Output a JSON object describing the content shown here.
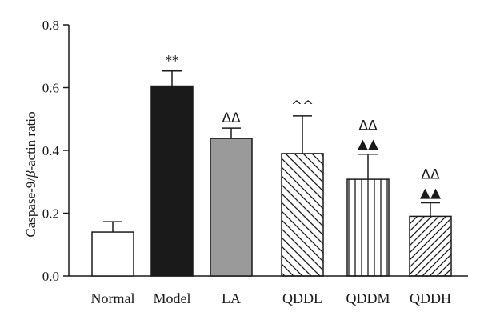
{
  "chart_data": {
    "type": "bar",
    "categories": [
      "Normal",
      "Model",
      "LA",
      "QDDL",
      "QDDM",
      "QDDH"
    ],
    "values": [
      0.14,
      0.605,
      0.438,
      0.39,
      0.308,
      0.19
    ],
    "errors": [
      0.033,
      0.048,
      0.033,
      0.12,
      0.08,
      0.043
    ],
    "fills": [
      "white",
      "black",
      "gray",
      "diagonal-backslash",
      "vertical-lines",
      "diagonal-slash"
    ],
    "annotations": [
      "",
      "**",
      "ΔΔ",
      "^^",
      "ΔΔ\n▲▲",
      "ΔΔ\n▲▲"
    ],
    "ylabel": "Caspase-9/β-actin ratio",
    "xlabel": "",
    "ylim": [
      0,
      0.8
    ],
    "yticks": [
      "0.0",
      "0.2",
      "0.4",
      "0.6",
      "0.8"
    ],
    "colors": {
      "axis": "#1a1a1a",
      "model": "#1a1a1a",
      "la": "#9a9a9a",
      "normal": "#ffffff"
    }
  }
}
